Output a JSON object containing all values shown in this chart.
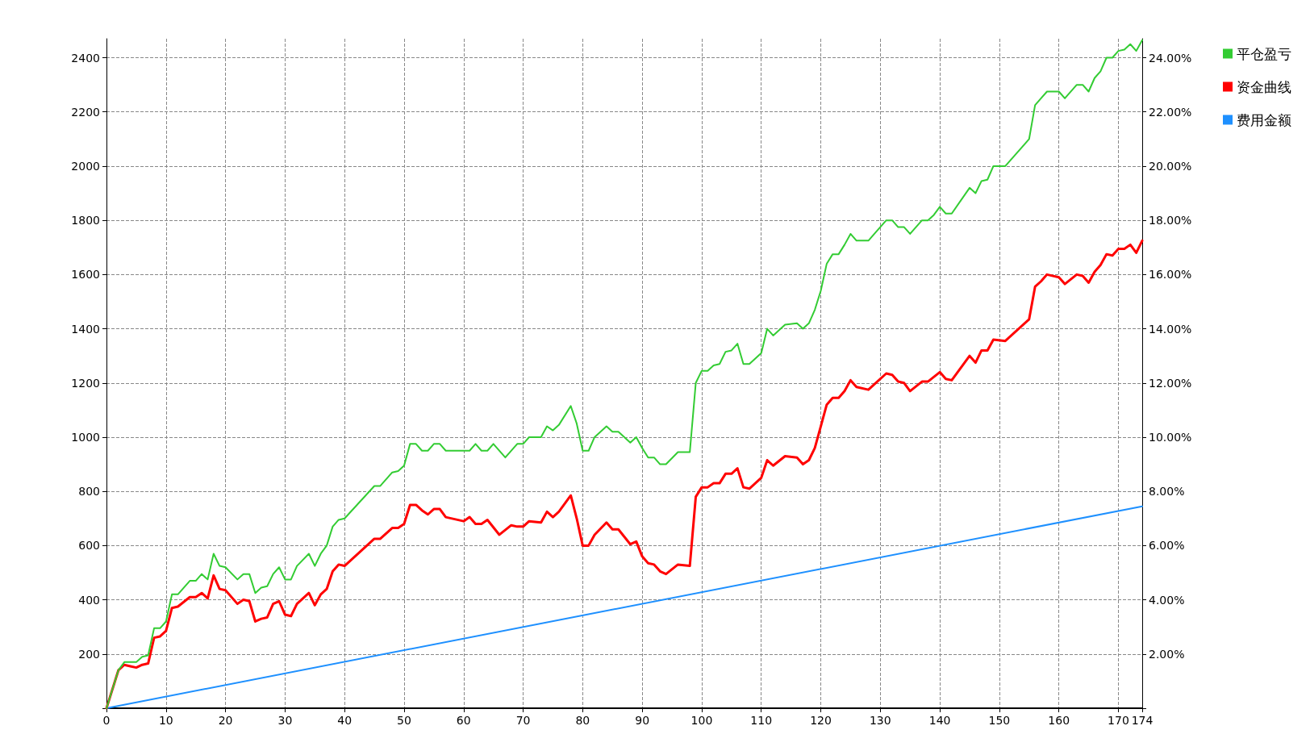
{
  "chart_data": {
    "type": "line",
    "xlim": [
      0,
      174
    ],
    "xticks": [
      0,
      10,
      20,
      30,
      40,
      50,
      60,
      70,
      80,
      90,
      100,
      110,
      120,
      130,
      140,
      150,
      160,
      170,
      174
    ],
    "ylim": [
      0,
      2470
    ],
    "yticks": [
      {
        "value": 0,
        "label": null
      },
      200,
      400,
      600,
      800,
      1000,
      1200,
      1400,
      1600,
      1800,
      2000,
      2200,
      2400
    ],
    "y2lim": [
      0,
      24.7
    ],
    "y2ticks": [
      {
        "value": 0,
        "label": null
      },
      {
        "value": 2,
        "label": "2.00%"
      },
      {
        "value": 4,
        "label": "4.00%"
      },
      {
        "value": 6,
        "label": "6.00%"
      },
      {
        "value": 8,
        "label": "8.00%"
      },
      {
        "value": 10,
        "label": "10.00%"
      },
      {
        "value": 12,
        "label": "12.00%"
      },
      {
        "value": 14,
        "label": "14.00%"
      },
      {
        "value": 16,
        "label": "16.00%"
      },
      {
        "value": 18,
        "label": "18.00%"
      },
      {
        "value": 20,
        "label": "20.00%"
      },
      {
        "value": 22,
        "label": "22.00%"
      },
      {
        "value": 24,
        "label": "24.00%"
      }
    ],
    "grid": true,
    "legend": "top right",
    "marker": "none",
    "line_style": "solid",
    "series": [
      {
        "name": "平仓盈亏",
        "color": "#33cc33",
        "x": [
          0,
          2,
          3,
          5,
          6,
          7,
          8,
          9,
          10,
          11,
          12,
          14,
          15,
          16,
          17,
          18,
          19,
          20,
          22,
          23,
          24,
          25,
          26,
          27,
          28,
          29,
          30,
          31,
          32,
          34,
          35,
          36,
          37,
          38,
          39,
          40,
          45,
          46,
          48,
          49,
          50,
          51,
          52,
          53,
          54,
          55,
          56,
          57,
          61,
          62,
          63,
          64,
          65,
          67,
          69,
          70,
          71,
          73,
          74,
          75,
          76,
          78,
          79,
          80,
          81,
          82,
          84,
          85,
          86,
          88,
          89,
          90,
          91,
          92,
          93,
          94,
          96,
          98,
          99,
          100,
          101,
          102,
          103,
          104,
          105,
          106,
          107,
          108,
          110,
          111,
          112,
          114,
          116,
          117,
          118,
          119,
          120,
          121,
          122,
          123,
          124,
          125,
          126,
          128,
          129,
          131,
          132,
          133,
          134,
          135,
          137,
          138,
          139,
          140,
          141,
          142,
          145,
          146,
          147,
          148,
          149,
          151,
          155,
          156,
          157,
          158,
          160,
          161,
          163,
          164,
          165,
          166,
          167,
          168,
          169,
          170,
          171,
          172,
          173,
          174
        ],
        "values": [
          0,
          140,
          170,
          170,
          190,
          195,
          295,
          295,
          320,
          420,
          420,
          470,
          470,
          495,
          475,
          570,
          525,
          520,
          475,
          495,
          495,
          425,
          445,
          450,
          495,
          520,
          475,
          475,
          525,
          570,
          525,
          570,
          600,
          670,
          695,
          700,
          820,
          820,
          870,
          875,
          895,
          975,
          975,
          950,
          950,
          975,
          975,
          950,
          950,
          975,
          950,
          950,
          975,
          925,
          975,
          975,
          1000,
          1000,
          1040,
          1025,
          1045,
          1115,
          1050,
          950,
          950,
          1000,
          1040,
          1020,
          1020,
          980,
          1000,
          960,
          925,
          925,
          900,
          900,
          945,
          945,
          1200,
          1245,
          1245,
          1265,
          1270,
          1315,
          1320,
          1345,
          1270,
          1270,
          1310,
          1400,
          1375,
          1415,
          1420,
          1400,
          1420,
          1470,
          1540,
          1640,
          1675,
          1675,
          1710,
          1750,
          1725,
          1725,
          1750,
          1800,
          1800,
          1775,
          1775,
          1750,
          1800,
          1800,
          1820,
          1850,
          1825,
          1825,
          1920,
          1900,
          1945,
          1950,
          2000,
          2000,
          2100,
          2225,
          2250,
          2275,
          2275,
          2250,
          2300,
          2300,
          2275,
          2325,
          2350,
          2400,
          2400,
          2425,
          2430,
          2450,
          2425,
          2465
        ]
      },
      {
        "name": "资金曲线",
        "color": "#ff0000",
        "x": [
          0,
          2,
          3,
          4,
          5,
          6,
          7,
          8,
          9,
          10,
          11,
          12,
          14,
          15,
          16,
          17,
          18,
          19,
          20,
          22,
          23,
          24,
          25,
          26,
          27,
          28,
          29,
          30,
          31,
          32,
          34,
          35,
          36,
          37,
          38,
          39,
          40,
          45,
          46,
          48,
          49,
          50,
          51,
          52,
          53,
          54,
          55,
          56,
          57,
          60,
          61,
          62,
          63,
          64,
          66,
          68,
          69,
          70,
          71,
          73,
          74,
          75,
          76,
          78,
          79,
          80,
          81,
          82,
          84,
          85,
          86,
          88,
          89,
          90,
          91,
          92,
          93,
          94,
          96,
          98,
          99,
          100,
          101,
          102,
          103,
          104,
          105,
          106,
          107,
          108,
          110,
          111,
          112,
          114,
          116,
          117,
          118,
          119,
          120,
          121,
          122,
          123,
          124,
          125,
          126,
          128,
          129,
          131,
          132,
          133,
          134,
          135,
          137,
          138,
          140,
          141,
          142,
          145,
          146,
          147,
          148,
          149,
          151,
          155,
          156,
          157,
          158,
          160,
          161,
          163,
          164,
          165,
          166,
          167,
          168,
          169,
          170,
          171,
          172,
          173,
          174
        ],
        "values": [
          0,
          140,
          160,
          155,
          150,
          160,
          165,
          260,
          265,
          285,
          370,
          375,
          410,
          410,
          425,
          405,
          490,
          440,
          435,
          385,
          400,
          395,
          320,
          330,
          335,
          385,
          395,
          345,
          340,
          385,
          425,
          380,
          420,
          440,
          505,
          530,
          525,
          625,
          625,
          665,
          665,
          680,
          750,
          750,
          730,
          715,
          735,
          735,
          705,
          690,
          705,
          680,
          680,
          695,
          640,
          675,
          670,
          670,
          690,
          685,
          725,
          705,
          725,
          785,
          700,
          600,
          600,
          640,
          685,
          660,
          660,
          605,
          615,
          560,
          535,
          530,
          505,
          495,
          530,
          525,
          780,
          815,
          815,
          830,
          830,
          865,
          865,
          885,
          815,
          810,
          850,
          915,
          895,
          930,
          925,
          900,
          915,
          960,
          1040,
          1120,
          1145,
          1145,
          1170,
          1210,
          1185,
          1175,
          1195,
          1235,
          1230,
          1205,
          1200,
          1170,
          1205,
          1205,
          1240,
          1215,
          1210,
          1300,
          1275,
          1320,
          1320,
          1360,
          1355,
          1435,
          1555,
          1575,
          1600,
          1590,
          1565,
          1600,
          1595,
          1570,
          1610,
          1635,
          1675,
          1670,
          1695,
          1695,
          1710,
          1680,
          1725
        ]
      },
      {
        "name": "费用金额",
        "color": "#1e90ff",
        "x": [
          0,
          174
        ],
        "values": [
          0,
          745
        ]
      }
    ]
  }
}
